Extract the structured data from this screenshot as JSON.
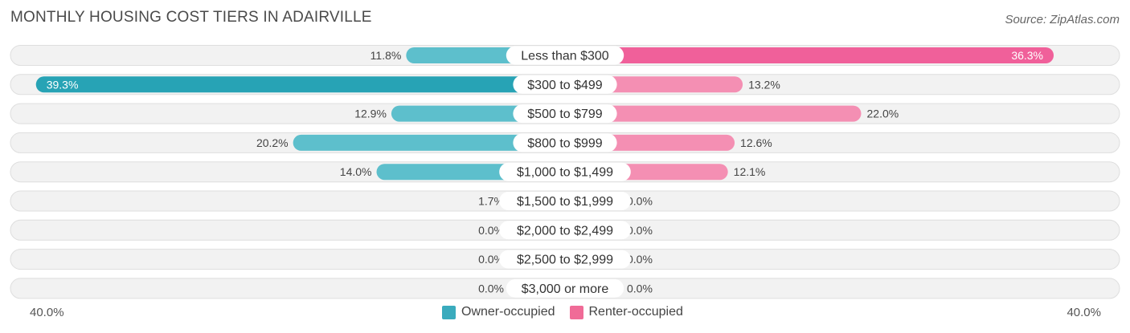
{
  "title": "MONTHLY HOUSING COST TIERS IN ADAIRVILLE",
  "source": "Source: ZipAtlas.com",
  "colors": {
    "owner": "#3aabbd",
    "owner_light": "#86cdd8",
    "renter": "#f06b97",
    "renter_light": "#f7a8c2"
  },
  "chart_data": {
    "type": "bar",
    "orientation": "horizontal-diverging",
    "categories": [
      "Less than $300",
      "$300 to $499",
      "$500 to $799",
      "$800 to $999",
      "$1,000 to $1,499",
      "$1,500 to $1,999",
      "$2,000 to $2,499",
      "$2,500 to $2,999",
      "$3,000 or more"
    ],
    "series": [
      {
        "name": "Owner-occupied",
        "values": [
          11.8,
          39.3,
          12.9,
          20.2,
          14.0,
          1.7,
          0.0,
          0.0,
          0.0
        ],
        "labels": [
          "11.8%",
          "39.3%",
          "12.9%",
          "20.2%",
          "14.0%",
          "1.7%",
          "0.0%",
          "0.0%",
          "0.0%"
        ]
      },
      {
        "name": "Renter-occupied",
        "values": [
          36.3,
          13.2,
          22.0,
          12.6,
          12.1,
          0.0,
          0.0,
          0.0,
          0.0
        ],
        "labels": [
          "36.3%",
          "13.2%",
          "22.0%",
          "12.6%",
          "12.1%",
          "0.0%",
          "0.0%",
          "0.0%",
          "0.0%"
        ]
      }
    ],
    "xlim": [
      -40,
      40
    ],
    "axis_labels": {
      "left": "40.0%",
      "right": "40.0%"
    },
    "legend": {
      "position": "bottom-center",
      "items": [
        "Owner-occupied",
        "Renter-occupied"
      ]
    }
  }
}
